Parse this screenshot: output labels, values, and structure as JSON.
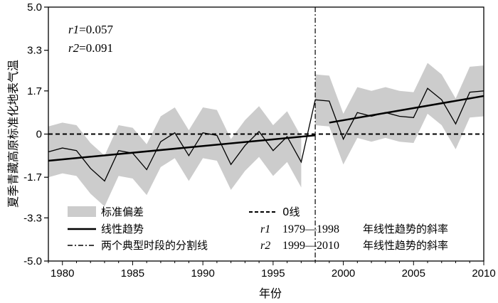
{
  "chart_data": {
    "type": "line",
    "xlabel": "年份",
    "ylabel": "夏季青藏高原标准化地表气温",
    "xlim": [
      1979,
      2010
    ],
    "ylim": [
      -5.0,
      5.0
    ],
    "x_ticks": [
      1980,
      1985,
      1990,
      1995,
      2000,
      2005,
      2010
    ],
    "y_ticks": [
      5.0,
      3.3,
      1.7,
      0,
      -1.7,
      -3.3,
      -5.0
    ],
    "y_tick_labels": [
      "5.0",
      "3.3",
      "1.7",
      "0",
      "-1.7",
      "-3.3",
      "-5.0"
    ],
    "x": [
      1979,
      1980,
      1981,
      1982,
      1983,
      1984,
      1985,
      1986,
      1987,
      1988,
      1989,
      1990,
      1991,
      1992,
      1993,
      1994,
      1995,
      1996,
      1997,
      1998,
      1999,
      2000,
      2001,
      2002,
      2003,
      2004,
      2005,
      2006,
      2007,
      2008,
      2009,
      2010
    ],
    "series": [
      {
        "role": "mean",
        "values": [
          -0.7,
          -0.55,
          -0.65,
          -1.35,
          -1.85,
          -0.65,
          -0.75,
          -1.4,
          -0.3,
          0.05,
          -0.85,
          0.05,
          -0.05,
          -1.2,
          -0.45,
          0.1,
          -0.65,
          -0.1,
          -1.1,
          1.35,
          1.3,
          -0.2,
          0.85,
          0.7,
          0.85,
          0.7,
          0.65,
          1.8,
          1.35,
          0.4,
          1.65,
          1.7
        ]
      },
      {
        "role": "std-band",
        "lower": [
          -1.7,
          -1.55,
          -1.65,
          -2.35,
          -2.85,
          -1.65,
          -1.75,
          -2.4,
          -1.3,
          -0.95,
          -1.85,
          -0.95,
          -1.05,
          -2.2,
          -1.45,
          -0.9,
          -1.65,
          -1.1,
          -2.1,
          0.35,
          0.3,
          -1.2,
          -0.15,
          -0.3,
          -0.15,
          -0.3,
          -0.35,
          0.8,
          0.35,
          -0.6,
          0.65,
          0.7
        ],
        "upper": [
          0.3,
          0.45,
          0.35,
          -0.35,
          -0.85,
          0.35,
          0.25,
          -0.4,
          0.7,
          1.05,
          0.15,
          1.05,
          0.95,
          -0.2,
          0.55,
          1.1,
          0.35,
          0.9,
          -0.1,
          2.35,
          2.3,
          0.8,
          1.85,
          1.7,
          1.85,
          1.7,
          1.65,
          2.8,
          2.35,
          1.4,
          2.65,
          2.7
        ]
      }
    ],
    "trends": [
      {
        "x": [
          1979,
          1998
        ],
        "y": [
          -1.05,
          -0.05
        ]
      },
      {
        "x": [
          1999,
          2010
        ],
        "y": [
          0.45,
          1.5
        ]
      }
    ],
    "zero_line": 0,
    "divider_year": 1998,
    "annotations": [
      {
        "label": "r1",
        "value": "=0.057"
      },
      {
        "label": "r2",
        "value": "=0.091"
      }
    ],
    "legend": {
      "band": "标准偏差",
      "trend": "线性趋势",
      "divider": "两个典型时段的分割线",
      "zero": "0线",
      "r1_sym": "r1",
      "r1_years": "1979—1998",
      "r1_text": "年线性趋势的斜率",
      "r2_sym": "r2",
      "r2_years": "1999—2010",
      "r2_text": "年线性趋势的斜率"
    },
    "colors": {
      "band": "#cccccc",
      "line": "#000000"
    }
  }
}
